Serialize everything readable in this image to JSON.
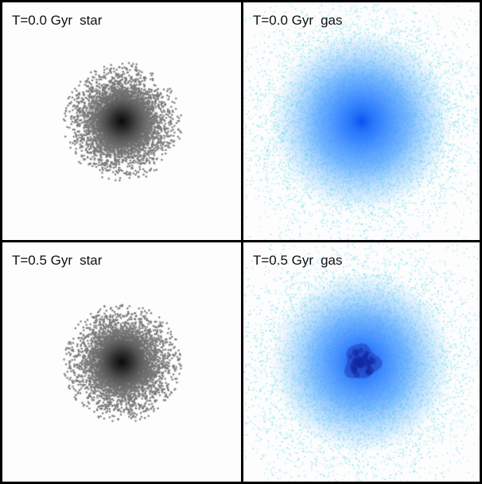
{
  "panels": [
    {
      "time": "T=0.0 Gyr",
      "component": "star",
      "kind": "star",
      "color": "#7a7a7a",
      "core_color": "#111111"
    },
    {
      "time": "T=0.0 Gyr",
      "component": "gas",
      "kind": "gas",
      "color": "#3b8cff",
      "halo_color": "#7fe0ef",
      "core_color": "#1f6cf0"
    },
    {
      "time": "T=0.5 Gyr",
      "component": "star",
      "kind": "star",
      "color": "#7a7a7a",
      "core_color": "#111111"
    },
    {
      "time": "T=0.5 Gyr",
      "component": "gas",
      "kind": "gas-clump",
      "color": "#3b8cff",
      "halo_color": "#7fe0ef",
      "core_color": "#2a55d0"
    }
  ]
}
